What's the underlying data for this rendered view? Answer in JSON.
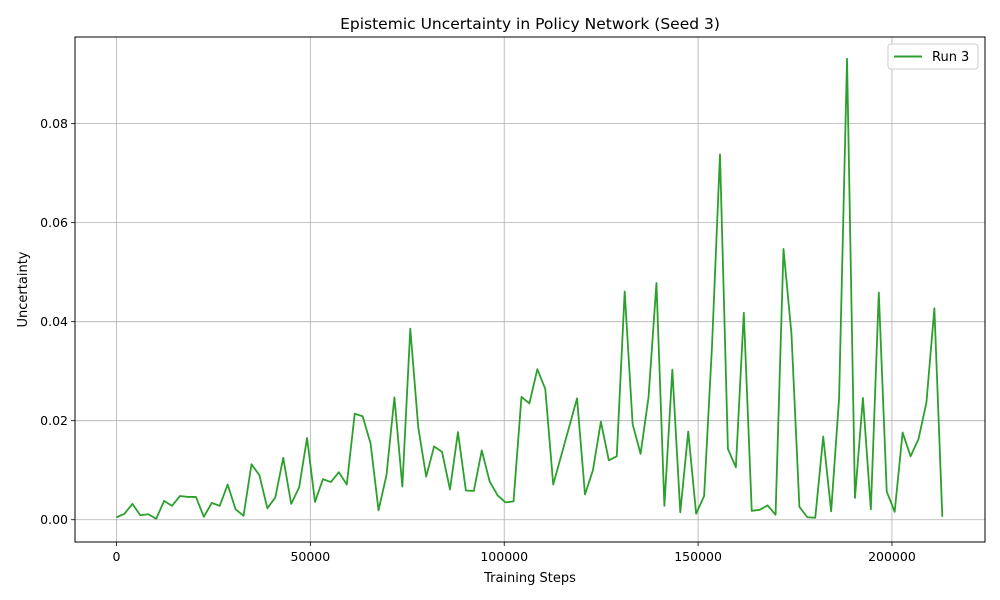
{
  "chart_data": {
    "type": "line",
    "title": "Epistemic Uncertainty in Policy Network (Seed 3)",
    "xlabel": "Training Steps",
    "ylabel": "Uncertainty",
    "xlim": [
      -10700,
      224000
    ],
    "ylim": [
      -0.0045,
      0.0975
    ],
    "xticks": [
      0,
      50000,
      100000,
      150000,
      200000
    ],
    "yticks": [
      0.0,
      0.02,
      0.04,
      0.06,
      0.08
    ],
    "xtick_labels": [
      "0",
      "50000",
      "100000",
      "150000",
      "200000"
    ],
    "ytick_labels": [
      "0.00",
      "0.02",
      "0.04",
      "0.06",
      "0.08"
    ],
    "grid": true,
    "legend_position": "top-right",
    "series": [
      {
        "name": "Run 3",
        "color": "#2ca02c",
        "x": [
          0,
          2048,
          4096,
          6144,
          8192,
          10240,
          12288,
          14336,
          16384,
          18432,
          20480,
          22528,
          24576,
          26624,
          28672,
          30720,
          32768,
          34816,
          36864,
          38912,
          40960,
          43008,
          45056,
          47104,
          49152,
          51200,
          53248,
          55296,
          57344,
          59392,
          61440,
          63488,
          65536,
          67584,
          69632,
          71680,
          73728,
          75776,
          77824,
          79872,
          81920,
          83968,
          86016,
          88064,
          90112,
          92160,
          94208,
          96256,
          98304,
          100352,
          102400,
          104448,
          106496,
          108544,
          110592,
          112640,
          118784,
          120832,
          122880,
          124928,
          126976,
          129024,
          131072,
          133120,
          135168,
          137216,
          139264,
          141312,
          143360,
          145408,
          147456,
          149504,
          151552,
          153600,
          155648,
          157696,
          159744,
          161792,
          163840,
          165888,
          167936,
          169984,
          172032,
          174080,
          176128,
          178176,
          180224,
          182272,
          184320,
          186368,
          188416,
          190464,
          192512,
          194560,
          196608,
          198656,
          200704,
          202752,
          204800,
          206848,
          208896,
          210944,
          212992
        ],
        "values": [
          0.0005,
          0.0012,
          0.0032,
          0.0009,
          0.0011,
          0.0002,
          0.0038,
          0.0028,
          0.0048,
          0.0046,
          0.0046,
          0.0006,
          0.0034,
          0.0028,
          0.0071,
          0.0021,
          0.0008,
          0.0112,
          0.009,
          0.0023,
          0.0045,
          0.0125,
          0.0032,
          0.0065,
          0.0165,
          0.0036,
          0.0082,
          0.0076,
          0.0096,
          0.0071,
          0.0214,
          0.0209,
          0.0154,
          0.0019,
          0.009,
          0.0247,
          0.0067,
          0.0386,
          0.0187,
          0.0087,
          0.0148,
          0.0137,
          0.0061,
          0.0177,
          0.0059,
          0.0058,
          0.014,
          0.0077,
          0.0049,
          0.0035,
          0.0037,
          0.0248,
          0.0235,
          0.0304,
          0.0264,
          0.0071,
          0.0245,
          0.0051,
          0.01,
          0.0198,
          0.012,
          0.0128,
          0.0461,
          0.0193,
          0.0133,
          0.0247,
          0.0478,
          0.0028,
          0.0303,
          0.0015,
          0.0178,
          0.0012,
          0.0048,
          0.0352,
          0.0738,
          0.0143,
          0.0106,
          0.0418,
          0.0018,
          0.002,
          0.0029,
          0.001,
          0.0547,
          0.0376,
          0.0026,
          0.0005,
          0.0004,
          0.0168,
          0.0017,
          0.0245,
          0.0931,
          0.0044,
          0.0246,
          0.0021,
          0.0459,
          0.0057,
          0.0016,
          0.0176,
          0.0128,
          0.0163,
          0.0237,
          0.0427,
          0.0006
        ]
      }
    ]
  }
}
